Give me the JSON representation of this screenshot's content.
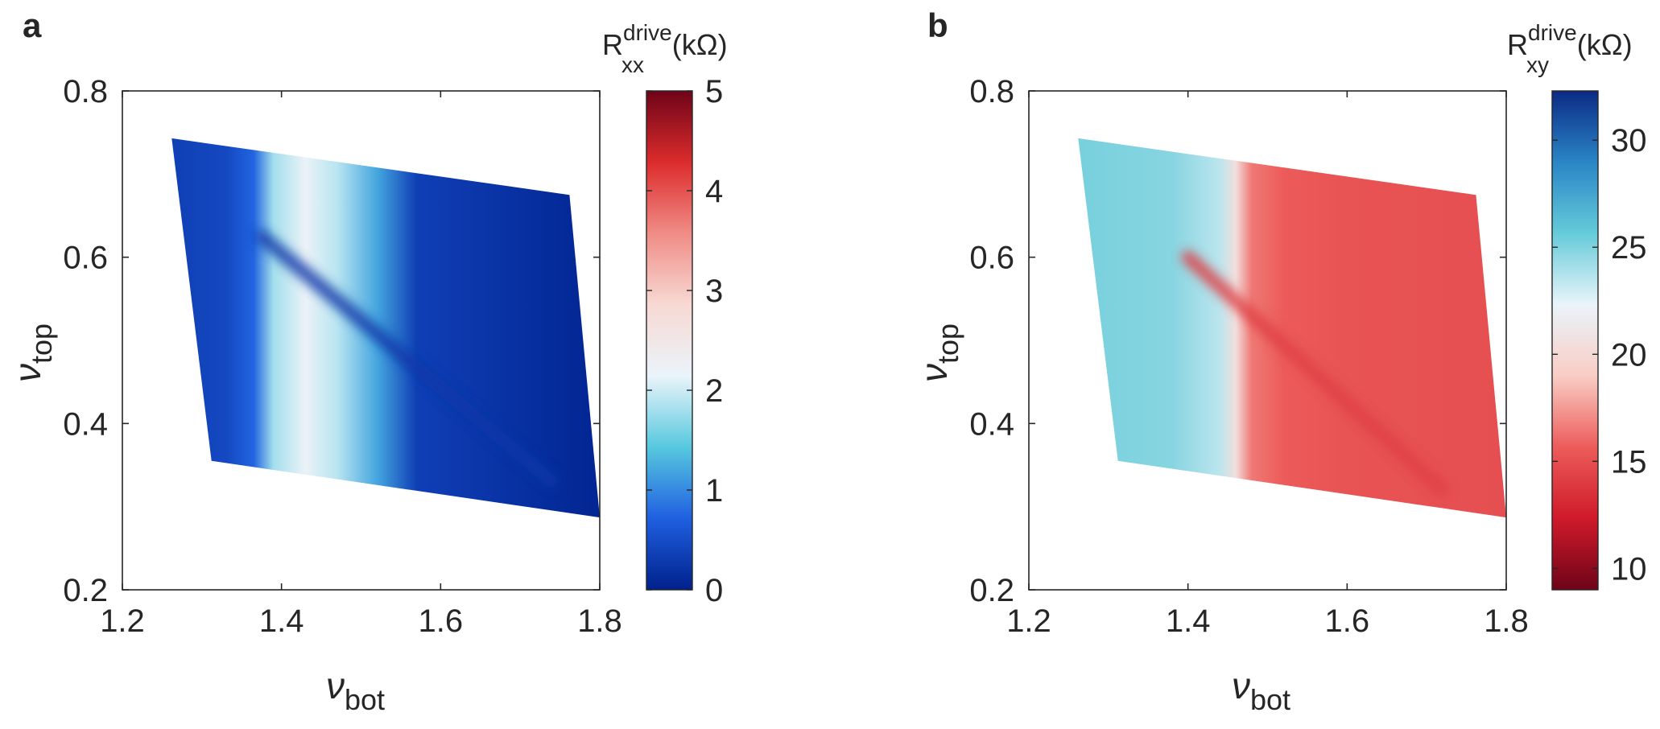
{
  "chart_data": [
    {
      "type": "heatmap",
      "panel_label": "a",
      "xlabel": "ν",
      "xlabel_sub": "bot",
      "ylabel": "ν",
      "ylabel_sub": "top",
      "xlim": [
        1.2,
        1.8
      ],
      "ylim": [
        0.2,
        0.8
      ],
      "xticks": [
        1.2,
        1.4,
        1.6,
        1.8
      ],
      "yticks": [
        0.2,
        0.4,
        0.6,
        0.8
      ],
      "region_corners": [
        [
          1.262,
          0.743
        ],
        [
          1.762,
          0.675
        ],
        [
          1.8,
          0.287
        ],
        [
          1.312,
          0.355
        ]
      ],
      "colorbar": {
        "label_main": "R",
        "label_sup": "drive",
        "label_sub": "xx",
        "label_unit": "(kΩ)",
        "min": 0,
        "max": 5,
        "ticks": [
          0,
          1,
          2,
          3,
          4,
          5
        ],
        "direction": "low-to-high",
        "colors": [
          "#00218c",
          "#1f5fe0",
          "#57c8df",
          "#eaf4fa",
          "#f8d9d3",
          "#f08c86",
          "#dc2c2c",
          "#6e0418"
        ]
      },
      "profile": {
        "x_stops": [
          1.262,
          1.33,
          1.365,
          1.39,
          1.43,
          1.47,
          1.52,
          1.57,
          1.8
        ],
        "values": [
          0.35,
          0.45,
          0.75,
          1.8,
          2.2,
          1.9,
          1.2,
          0.35,
          0.05
        ]
      },
      "feature_line": {
        "from": [
          1.375,
          0.625
        ],
        "to": [
          1.74,
          0.33
        ],
        "value": 0.25
      }
    },
    {
      "type": "heatmap",
      "panel_label": "b",
      "xlabel": "ν",
      "xlabel_sub": "bot",
      "ylabel": "ν",
      "ylabel_sub": "top",
      "xlim": [
        1.2,
        1.8
      ],
      "ylim": [
        0.2,
        0.8
      ],
      "xticks": [
        1.2,
        1.4,
        1.6,
        1.8
      ],
      "yticks": [
        0.2,
        0.4,
        0.6,
        0.8
      ],
      "region_corners": [
        [
          1.262,
          0.743
        ],
        [
          1.762,
          0.675
        ],
        [
          1.8,
          0.287
        ],
        [
          1.312,
          0.355
        ]
      ],
      "colorbar": {
        "label_main": "R",
        "label_sup": "drive",
        "label_sub": "xy",
        "label_unit": "(kΩ)",
        "min": 9,
        "max": 32.3,
        "ticks": [
          10,
          15,
          20,
          25,
          30
        ],
        "direction": "low-to-high",
        "colors": [
          "#6e0418",
          "#cf1a2a",
          "#ec5c5a",
          "#f9cdc5",
          "#eaf4fa",
          "#66cbd9",
          "#2a85c6",
          "#0b2a85"
        ]
      },
      "profile": {
        "x_stops": [
          1.262,
          1.38,
          1.44,
          1.46,
          1.48,
          1.52,
          1.6,
          1.8
        ],
        "values": [
          25.2,
          24.8,
          23.5,
          20.5,
          16.5,
          15.6,
          15.2,
          15.0
        ]
      },
      "feature_line": {
        "from": [
          1.4,
          0.6
        ],
        "to": [
          1.72,
          0.32
        ],
        "value": 14.2
      }
    }
  ]
}
